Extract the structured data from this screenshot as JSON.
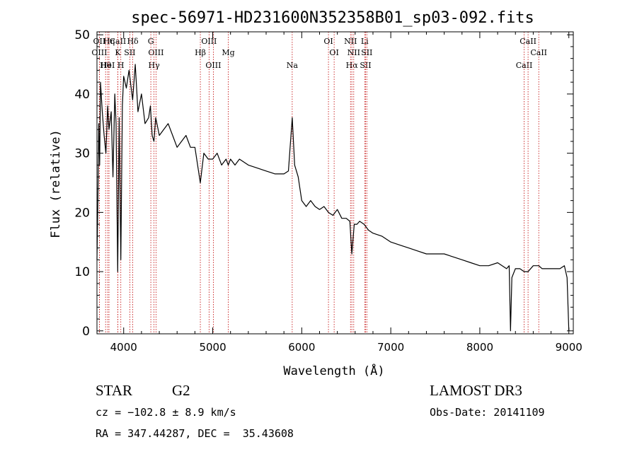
{
  "chart_data": {
    "type": "line",
    "title": "spec-56971-HD231600N352358B01_sp03-092.fits",
    "xlabel": "Wavelength (Å)",
    "ylabel": "Flux (relative)",
    "xlim": [
      3700,
      9050
    ],
    "ylim": [
      -0.5,
      50.5
    ],
    "xticks": [
      4000,
      5000,
      6000,
      7000,
      8000,
      9000
    ],
    "yticks": [
      0,
      10,
      20,
      30,
      40,
      50
    ],
    "series": [
      {
        "name": "flux",
        "x": [
          3700,
          3710,
          3720,
          3730,
          3740,
          3760,
          3780,
          3800,
          3820,
          3835,
          3860,
          3880,
          3900,
          3915,
          3933,
          3950,
          3968,
          3985,
          4000,
          4030,
          4060,
          4101,
          4130,
          4160,
          4200,
          4240,
          4280,
          4300,
          4320,
          4340,
          4360,
          4400,
          4450,
          4500,
          4550,
          4600,
          4650,
          4700,
          4750,
          4800,
          4861,
          4900,
          4950,
          5000,
          5050,
          5100,
          5150,
          5175,
          5200,
          5250,
          5300,
          5400,
          5500,
          5600,
          5700,
          5800,
          5850,
          5893,
          5920,
          5960,
          6000,
          6050,
          6100,
          6150,
          6200,
          6250,
          6300,
          6350,
          6400,
          6450,
          6500,
          6540,
          6563,
          6590,
          6620,
          6650,
          6700,
          6750,
          6800,
          6900,
          7000,
          7100,
          7200,
          7300,
          7400,
          7500,
          7600,
          7700,
          7800,
          7900,
          8000,
          8100,
          8200,
          8300,
          8330,
          8345,
          8360,
          8400,
          8450,
          8498,
          8542,
          8600,
          8662,
          8700,
          8800,
          8900,
          8950,
          8980,
          9000
        ],
        "y": [
          12,
          22,
          35,
          28,
          42,
          37,
          33,
          30,
          38,
          34,
          37,
          26,
          40,
          35,
          10,
          36,
          12,
          38,
          43,
          41,
          44,
          39,
          45,
          37,
          40,
          35,
          36,
          38,
          33,
          32,
          36,
          33,
          34,
          35,
          33,
          31,
          32,
          33,
          31,
          31,
          25,
          30,
          29,
          29,
          30,
          28,
          29,
          28,
          29,
          28,
          29,
          28,
          27.5,
          27,
          26.5,
          26.5,
          27,
          36,
          28,
          26,
          22,
          21,
          22,
          21,
          20.5,
          21,
          20,
          19.5,
          20.5,
          19,
          19,
          18.5,
          13,
          18,
          18,
          18.5,
          18,
          17,
          16.5,
          16,
          15,
          14.5,
          14,
          13.5,
          13,
          13,
          13,
          12.5,
          12,
          11.5,
          11,
          11,
          11.5,
          10.5,
          11,
          0,
          9,
          10.5,
          10.5,
          10,
          10,
          11,
          11,
          10.5,
          10.5,
          10.5,
          11,
          9,
          0
        ]
      }
    ],
    "lines": [
      {
        "label": "CaII",
        "x": 3934
      },
      {
        "label": "K",
        "x": 3934
      },
      {
        "label": "Hθ",
        "x": 3797
      },
      {
        "label": "OII",
        "x": 3727
      },
      {
        "label": "OIII",
        "x": 3727
      },
      {
        "label": "HeI",
        "x": 3820
      },
      {
        "label": "Hη",
        "x": 3835
      },
      {
        "label": "SII",
        "x": 4069
      },
      {
        "label": "H",
        "x": 3968
      },
      {
        "label": "Hδ",
        "x": 4102
      },
      {
        "label": "OIII",
        "x": 4363
      },
      {
        "label": "Hγ",
        "x": 4341
      },
      {
        "label": "G",
        "x": 4305
      },
      {
        "label": "Hβ",
        "x": 4861
      },
      {
        "label": "OIII",
        "x": 5007
      },
      {
        "label": "OIII",
        "x": 4959
      },
      {
        "label": "Mg",
        "x": 5175
      },
      {
        "label": "Na",
        "x": 5893
      },
      {
        "label": "OI",
        "x": 6300
      },
      {
        "label": "OI",
        "x": 6364
      },
      {
        "label": "Hα",
        "x": 6563
      },
      {
        "label": "NII",
        "x": 6548
      },
      {
        "label": "NII",
        "x": 6584
      },
      {
        "label": "SII",
        "x": 6717
      },
      {
        "label": "Li",
        "x": 6707
      },
      {
        "label": "SII",
        "x": 6731
      },
      {
        "label": "CaII",
        "x": 8498
      },
      {
        "label": "CaII",
        "x": 8542
      },
      {
        "label": "CaII",
        "x": 8662
      }
    ],
    "line_color": "#c00000"
  },
  "info": {
    "object_class": "STAR",
    "subclass": "G2",
    "survey": "LAMOST DR3",
    "redshift": "cz = −102.8 ± 8.9 km/s",
    "obs_date": "Obs-Date: 20141109",
    "coords": "RA = 347.44287, DEC =  35.43608"
  }
}
